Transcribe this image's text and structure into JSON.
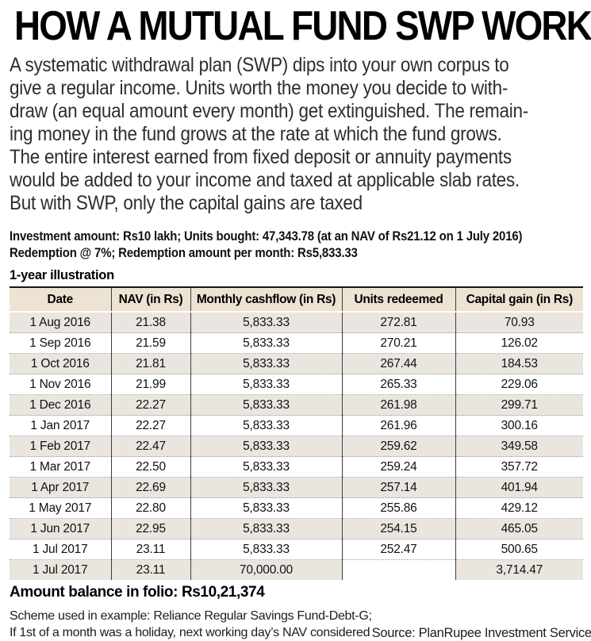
{
  "title": "HOW A MUTUAL FUND SWP WORKS",
  "intro": {
    "lines": [
      "A systematic withdrawal plan (SWP) dips into your own corpus to",
      "give a regular income. Units worth the money you decide to with-",
      "draw (an equal amount every month) get extinguished. The remain-",
      "ing money in the fund grows at the rate at which the fund grows.",
      "The entire interest earned from fixed deposit or annuity payments",
      "would be added to your income and taxed at applicable slab rates.",
      "But with SWP, only the capital gains are taxed"
    ]
  },
  "investment_details": {
    "line1": "Investment amount: Rs10 lakh; Units bought: 47,343.78 (at an NAV of Rs21.12 on 1 July 2016)",
    "line2": "Redemption @ 7%; Redemption amount per month: Rs5,833.33"
  },
  "table": {
    "caption": "1-year illustration",
    "columns": [
      "Date",
      "NAV (in Rs)",
      "Monthly cashflow (in Rs)",
      "Units redeemed",
      "Capital gain (in Rs)"
    ],
    "rows": [
      [
        "1 Aug 2016",
        "21.38",
        "5,833.33",
        "272.81",
        "70.93"
      ],
      [
        "1 Sep 2016",
        "21.59",
        "5,833.33",
        "270.21",
        "126.02"
      ],
      [
        "1 Oct 2016",
        "21.81",
        "5,833.33",
        "267.44",
        "184.53"
      ],
      [
        "1 Nov 2016",
        "21.99",
        "5,833.33",
        "265.33",
        "229.06"
      ],
      [
        "1 Dec 2016",
        "22.27",
        "5,833.33",
        "261.98",
        "299.71"
      ],
      [
        "1 Jan 2017",
        "22.27",
        "5,833.33",
        "261.96",
        "300.16"
      ],
      [
        "1 Feb 2017",
        "22.47",
        "5,833.33",
        "259.62",
        "349.58"
      ],
      [
        "1 Mar 2017",
        "22.50",
        "5,833.33",
        "259.24",
        "357.72"
      ],
      [
        "1 Apr 2017",
        "22.69",
        "5,833.33",
        "257.14",
        "401.94"
      ],
      [
        "1 May 2017",
        "22.80",
        "5,833.33",
        "255.86",
        "429.12"
      ],
      [
        "1 Jun 2017",
        "22.95",
        "5,833.33",
        "254.15",
        "465.05"
      ],
      [
        "1 Jul 2017",
        "23.11",
        "5,833.33",
        "252.47",
        "500.65"
      ],
      [
        "1 Jul 2017",
        "23.11",
        "70,000.00",
        "",
        "3,714.47"
      ]
    ]
  },
  "footer": {
    "balance": "Amount balance in folio: Rs10,21,374",
    "note_line1": "Scheme used in example: Reliance Regular Savings Fund-Debt-G;",
    "note_line2": "If 1st of a month was a holiday, next working day’s NAV considered",
    "source": "Source: PlanRupee Investment Services"
  },
  "colors": {
    "header_bg": "#ece3d2",
    "row_alt_bg": "#eae6df",
    "table_top_border": "#151515",
    "column_divider": "#3c3c3c",
    "row_divider_dotted": "#9f9f9f"
  }
}
